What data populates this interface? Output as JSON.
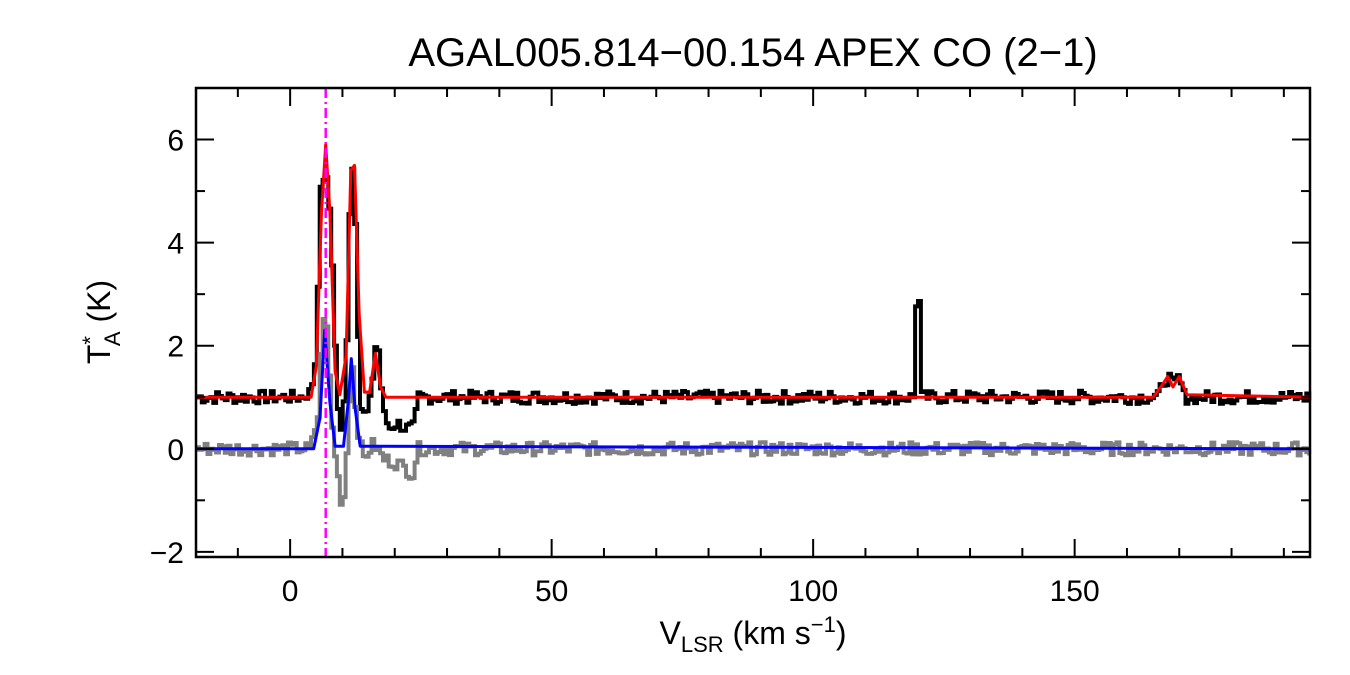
{
  "chart_data": {
    "type": "line",
    "title": "AGAL005.814−00.154  APEX CO (2−1)",
    "xlabel": {
      "main": "V",
      "sub": "LSR",
      "rest": " (km s",
      "sup": "−1",
      "end": ")"
    },
    "ylabel": {
      "main": "T",
      "sup": "*",
      "sub": "A",
      "rest": " (K)"
    },
    "xlim": [
      -18,
      195
    ],
    "ylim": [
      -2.1,
      7.0
    ],
    "x_ticks": [
      0,
      50,
      100,
      150
    ],
    "x_tick_labels": [
      "0",
      "50",
      "100",
      "150"
    ],
    "y_ticks": [
      -2,
      0,
      2,
      4,
      6
    ],
    "y_tick_labels": [
      "−2",
      "0",
      "2",
      "4",
      "6"
    ],
    "grid": false,
    "legend": "none",
    "vline": {
      "x": 6.8,
      "color": "#ff00ff",
      "style": "dash-dot"
    },
    "series": [
      {
        "color": "#000000",
        "style": "histogram",
        "points": [
          [
            -18,
            1.0
          ],
          [
            2,
            1.0
          ],
          [
            4,
            1.1
          ],
          [
            5,
            1.8
          ],
          [
            5.8,
            4.9
          ],
          [
            6.5,
            5.3
          ],
          [
            7.3,
            5.1
          ],
          [
            8,
            4.0
          ],
          [
            9,
            1.0
          ],
          [
            10,
            0.1
          ],
          [
            11,
            2.5
          ],
          [
            11.6,
            5.5
          ],
          [
            12.3,
            5.4
          ],
          [
            13,
            2.5
          ],
          [
            13.6,
            0.8
          ],
          [
            14.5,
            0.6
          ],
          [
            15.5,
            1.0
          ],
          [
            16.3,
            2.0
          ],
          [
            17,
            1.9
          ],
          [
            17.8,
            0.7
          ],
          [
            19,
            0.4
          ],
          [
            20.5,
            0.5
          ],
          [
            22,
            0.4
          ],
          [
            23.5,
            0.4
          ],
          [
            24,
            0.6
          ],
          [
            24.5,
            1.0
          ],
          [
            119.5,
            1.0
          ],
          [
            119.8,
            3.0
          ],
          [
            120.3,
            3.0
          ],
          [
            120.6,
            1.0
          ],
          [
            166,
            1.0
          ],
          [
            167,
            1.3
          ],
          [
            168,
            1.4
          ],
          [
            169,
            1.2
          ],
          [
            170,
            1.4
          ],
          [
            171,
            1.0
          ],
          [
            195,
            1.0
          ]
        ]
      },
      {
        "color": "#808080",
        "style": "histogram",
        "points": [
          [
            -18,
            0.0
          ],
          [
            4,
            0.0
          ],
          [
            5.5,
            0.7
          ],
          [
            6.3,
            2.7
          ],
          [
            7.2,
            2.2
          ],
          [
            8,
            0.5
          ],
          [
            9,
            -0.4
          ],
          [
            9.8,
            -1.0
          ],
          [
            10.5,
            -0.9
          ],
          [
            11.3,
            0.9
          ],
          [
            12,
            1.6
          ],
          [
            12.8,
            0.5
          ],
          [
            14,
            -0.2
          ],
          [
            16,
            0.1
          ],
          [
            18,
            -0.2
          ],
          [
            21,
            -0.3
          ],
          [
            23.5,
            -0.5
          ],
          [
            24.5,
            0.0
          ],
          [
            195,
            0.0
          ]
        ]
      },
      {
        "color": "#ff0000",
        "style": "smooth",
        "points": [
          [
            -18,
            1.0
          ],
          [
            4,
            1.0
          ],
          [
            5,
            1.6
          ],
          [
            6,
            4.6
          ],
          [
            6.8,
            5.9
          ],
          [
            7.6,
            4.6
          ],
          [
            8.6,
            1.5
          ],
          [
            9.5,
            1.05
          ],
          [
            10.7,
            1.8
          ],
          [
            11.6,
            5.4
          ],
          [
            12.3,
            5.5
          ],
          [
            13.2,
            2.6
          ],
          [
            14.2,
            1.1
          ],
          [
            15.2,
            1.1
          ],
          [
            16.3,
            1.85
          ],
          [
            17.3,
            1.2
          ],
          [
            18.3,
            1.0
          ],
          [
            165,
            1.0
          ],
          [
            166.5,
            1.2
          ],
          [
            167.8,
            1.4
          ],
          [
            168.8,
            1.2
          ],
          [
            170,
            1.4
          ],
          [
            171.5,
            1.05
          ],
          [
            195,
            1.0
          ]
        ]
      },
      {
        "color": "#0000ff",
        "style": "smooth",
        "points": [
          [
            -18,
            0.0
          ],
          [
            4.5,
            0.0
          ],
          [
            5.7,
            0.6
          ],
          [
            6.6,
            2.3
          ],
          [
            7.6,
            0.9
          ],
          [
            8.6,
            0.05
          ],
          [
            10.2,
            0.05
          ],
          [
            11.1,
            0.9
          ],
          [
            11.7,
            1.75
          ],
          [
            12.4,
            0.8
          ],
          [
            13.4,
            0.05
          ],
          [
            195,
            0.0
          ]
        ]
      }
    ]
  }
}
